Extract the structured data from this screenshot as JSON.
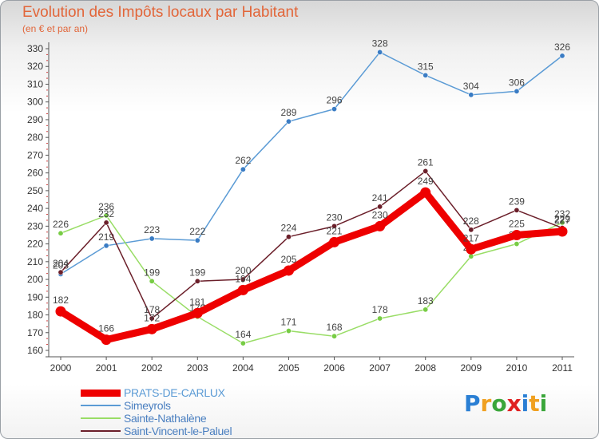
{
  "header": {
    "title": "Evolution des Impôts locaux par Habitant",
    "subtitle": "(en € et par an)"
  },
  "chart_data": {
    "type": "line",
    "title": "Evolution des Impôts locaux par Habitant",
    "subtitle": "(en € et par an)",
    "xlabel": "",
    "ylabel": "",
    "ylim": [
      160,
      330
    ],
    "ytick_step": 10,
    "grid": false,
    "categories": [
      "2000",
      "2001",
      "2002",
      "2003",
      "2004",
      "2005",
      "2006",
      "2007",
      "2008",
      "2009",
      "2010",
      "2011"
    ],
    "series": [
      {
        "name": "Simeyrols",
        "color": "#5b9bd5",
        "marker": "#3a7cc4",
        "values": [
          203,
          219,
          223,
          222,
          262,
          289,
          296,
          328,
          315,
          304,
          306,
          326
        ]
      },
      {
        "name": "Sainte-Nathalène",
        "color": "#99dd66",
        "marker": "#77cc44",
        "values": [
          226,
          236,
          199,
          179,
          164,
          171,
          168,
          178,
          183,
          213,
          220,
          232
        ]
      },
      {
        "name": "Saint-Vincent-le-Paluel",
        "color": "#6b1f2a",
        "marker": "#6b1f2a",
        "values": [
          204,
          232,
          178,
          199,
          200,
          224,
          230,
          241,
          261,
          228,
          239,
          229
        ]
      },
      {
        "name": "PRATS-DE-CARLUX",
        "color": "#ee0000",
        "marker": "#ee0000",
        "values": [
          182,
          166,
          172,
          181,
          194,
          205,
          221,
          230,
          249,
          217,
          225,
          227
        ]
      }
    ]
  },
  "legend": {
    "items": [
      {
        "label": "PRATS-DE-CARLUX",
        "color": "#ee0000"
      },
      {
        "label": "Simeyrols",
        "color": "#5b9bd5"
      },
      {
        "label": "Sainte-Nathalène",
        "color": "#99dd66"
      },
      {
        "label": "Saint-Vincent-le-Paluel",
        "color": "#6b1f2a"
      }
    ]
  },
  "logo": {
    "letters": [
      "P",
      "r",
      "o",
      "x",
      "i",
      "t",
      "i"
    ],
    "colors": [
      "#2a7fd4",
      "#f0a020",
      "#3aa63a",
      "#e02020",
      "#2a7fd4",
      "#f0a020",
      "#3aa63a"
    ]
  }
}
